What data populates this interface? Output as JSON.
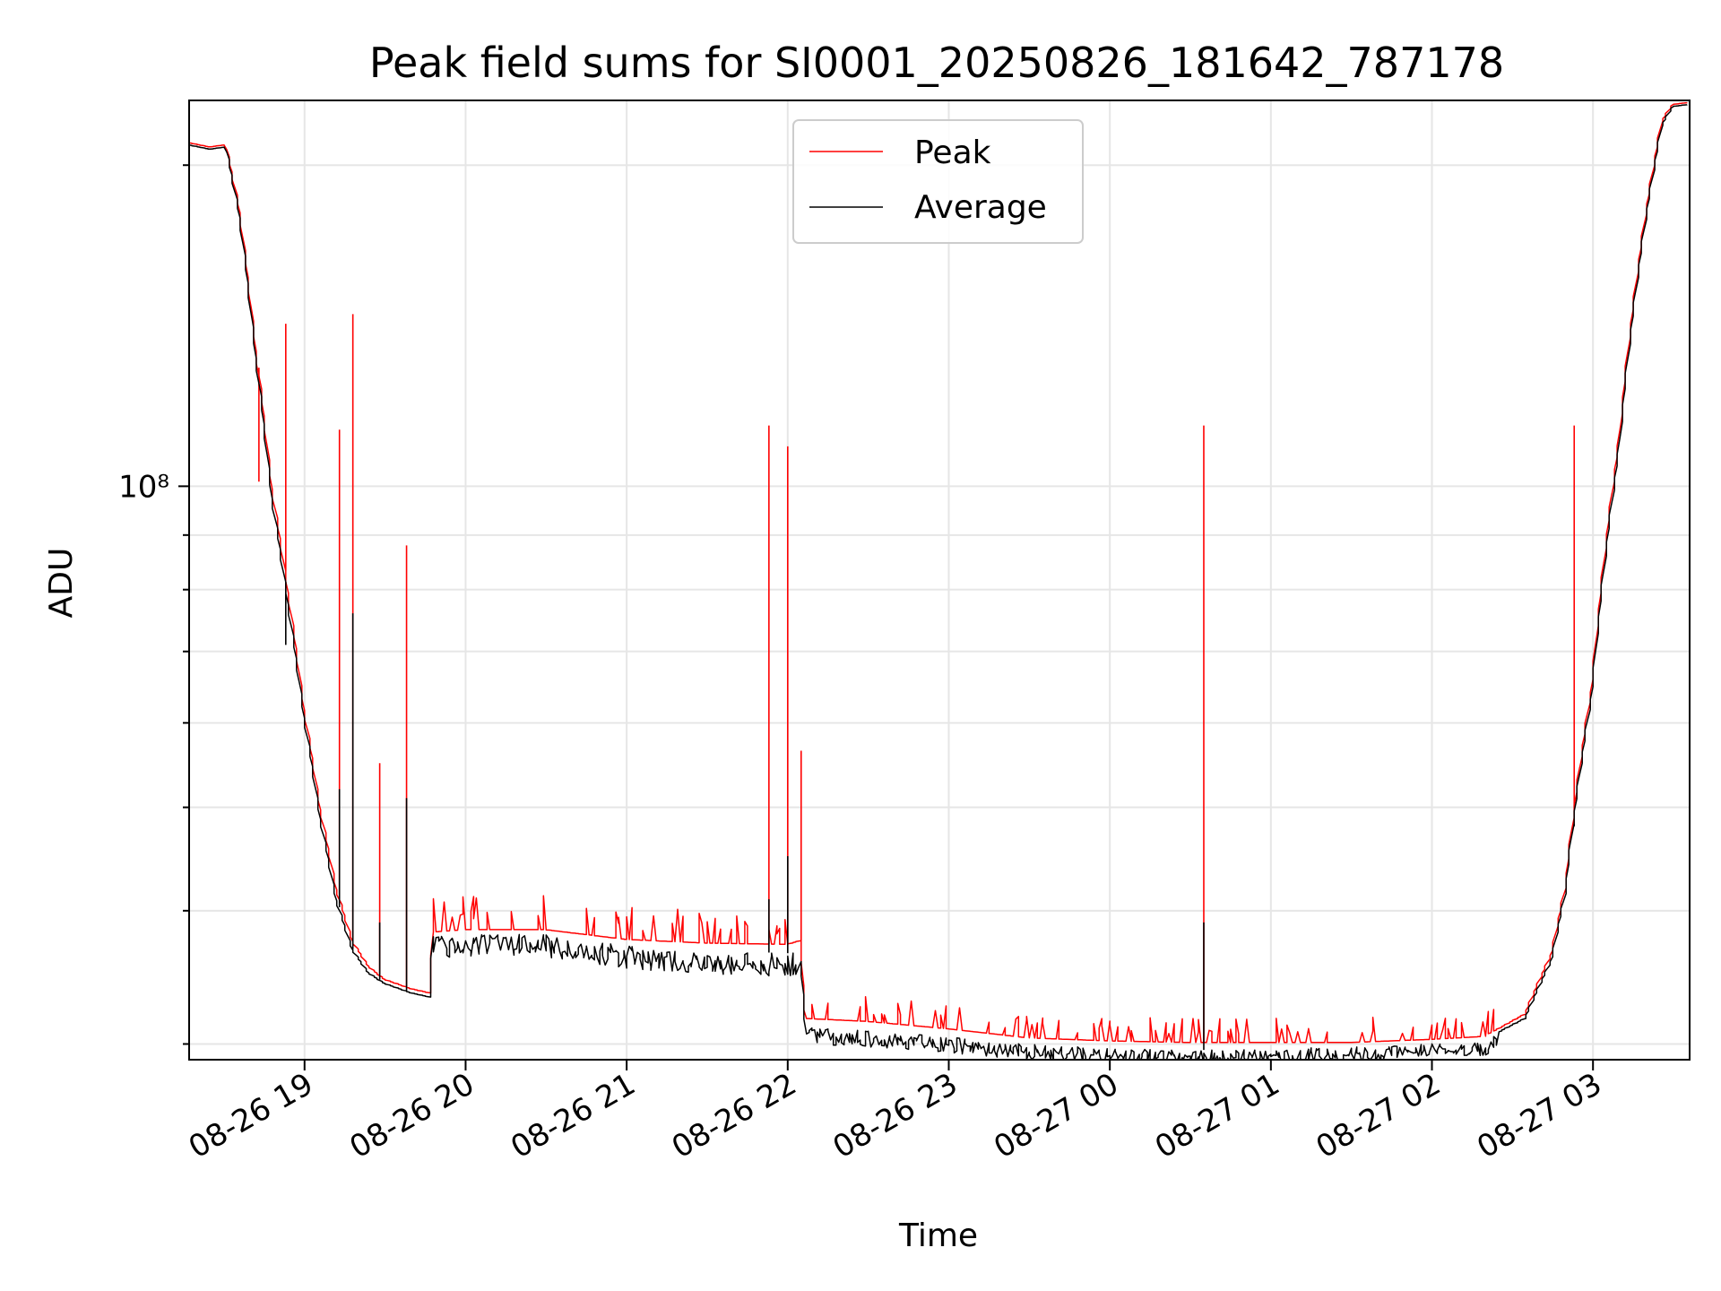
{
  "chart_data": {
    "type": "line",
    "title": "Peak field sums for SI0001_20250826_181642_787178",
    "xlabel": "Time",
    "ylabel": "ADU",
    "yscale": "log",
    "grid": true,
    "legend_position": "top-center",
    "x_ticks": [
      {
        "label": "08-26 19",
        "value": "2025-08-26T19:00"
      },
      {
        "label": "08-26 20",
        "value": "2025-08-26T20:00"
      },
      {
        "label": "08-26 21",
        "value": "2025-08-26T21:00"
      },
      {
        "label": "08-26 22",
        "value": "2025-08-26T22:00"
      },
      {
        "label": "08-26 23",
        "value": "2025-08-26T23:00"
      },
      {
        "label": "08-27 00",
        "value": "2025-08-27T00:00"
      },
      {
        "label": "08-27 01",
        "value": "2025-08-27T01:00"
      },
      {
        "label": "08-27 02",
        "value": "2025-08-27T02:00"
      },
      {
        "label": "08-27 03",
        "value": "2025-08-27T03:00"
      }
    ],
    "y_ticks": [
      {
        "label": "10⁸",
        "value": 100000000
      }
    ],
    "xlim": [
      "2025-08-26T18:17",
      "2025-08-27T03:36"
    ],
    "ylim": [
      29000000,
      230000000
    ],
    "series": [
      {
        "name": "Peak",
        "color": "#ff0000",
        "points": [
          [
            "2025-08-26T18:17",
            210000000
          ],
          [
            "2025-08-26T18:25",
            208000000
          ],
          [
            "2025-08-26T18:31",
            209000000
          ],
          [
            "2025-08-26T18:36",
            182000000
          ],
          [
            "2025-08-26T18:42",
            135000000
          ],
          [
            "2025-08-26T18:48",
            100000000
          ],
          [
            "2025-08-26T18:54",
            80000000
          ],
          [
            "2025-08-26T19:00",
            62000000
          ],
          [
            "2025-08-26T19:06",
            50000000
          ],
          [
            "2025-08-26T19:12",
            42000000
          ],
          [
            "2025-08-26T19:18",
            37500000
          ],
          [
            "2025-08-26T19:24",
            35500000
          ],
          [
            "2025-08-26T19:30",
            34500000
          ],
          [
            "2025-08-26T19:40",
            33800000
          ],
          [
            "2025-08-26T19:47",
            33500000
          ],
          [
            "2025-08-26T19:48",
            38200000
          ],
          [
            "2025-08-26T20:00",
            38400000
          ],
          [
            "2025-08-26T20:30",
            38400000
          ],
          [
            "2025-08-26T21:00",
            37600000
          ],
          [
            "2025-08-26T21:30",
            37300000
          ],
          [
            "2025-08-26T22:00",
            37200000
          ],
          [
            "2025-08-26T22:05",
            37500000
          ],
          [
            "2025-08-26T22:07",
            31700000
          ],
          [
            "2025-08-26T22:30",
            31500000
          ],
          [
            "2025-08-26T23:00",
            31000000
          ],
          [
            "2025-08-26T23:30",
            30400000
          ],
          [
            "2025-08-27T00:00",
            30200000
          ],
          [
            "2025-08-27T00:30",
            30100000
          ],
          [
            "2025-08-27T01:00",
            30100000
          ],
          [
            "2025-08-27T01:30",
            30100000
          ],
          [
            "2025-08-27T02:00",
            30300000
          ],
          [
            "2025-08-27T02:20",
            30500000
          ],
          [
            "2025-08-27T02:35",
            32000000
          ],
          [
            "2025-08-27T02:45",
            36500000
          ],
          [
            "2025-08-27T02:50",
            42000000
          ],
          [
            "2025-08-27T03:00",
            65000000
          ],
          [
            "2025-08-27T03:10",
            110000000
          ],
          [
            "2025-08-27T03:20",
            180000000
          ],
          [
            "2025-08-27T03:26",
            220000000
          ],
          [
            "2025-08-27T03:30",
            228000000
          ],
          [
            "2025-08-27T03:36",
            229000000
          ]
        ],
        "spikes": [
          [
            "2025-08-26T18:43",
            101000000
          ],
          [
            "2025-08-26T18:53",
            142000000
          ],
          [
            "2025-08-26T19:13",
            113000000
          ],
          [
            "2025-08-26T19:18",
            145000000
          ],
          [
            "2025-08-26T19:28",
            55000000
          ],
          [
            "2025-08-26T19:38",
            88000000
          ],
          [
            "2025-08-26T21:53",
            114000000
          ],
          [
            "2025-08-26T22:00",
            109000000
          ],
          [
            "2025-08-26T22:05",
            56500000
          ],
          [
            "2025-08-27T00:35",
            114000000
          ],
          [
            "2025-08-27T02:53",
            114000000
          ]
        ]
      },
      {
        "name": "Average",
        "color": "#000000",
        "points": [
          [
            "2025-08-26T18:17",
            209000000
          ],
          [
            "2025-08-26T18:25",
            207000000
          ],
          [
            "2025-08-26T18:31",
            208000000
          ],
          [
            "2025-08-26T18:36",
            180000000
          ],
          [
            "2025-08-26T18:42",
            133000000
          ],
          [
            "2025-08-26T18:48",
            98000000
          ],
          [
            "2025-08-26T18:54",
            78000000
          ],
          [
            "2025-08-26T19:00",
            61000000
          ],
          [
            "2025-08-26T19:06",
            49000000
          ],
          [
            "2025-08-26T19:12",
            41000000
          ],
          [
            "2025-08-26T19:18",
            36800000
          ],
          [
            "2025-08-26T19:24",
            35000000
          ],
          [
            "2025-08-26T19:30",
            34200000
          ],
          [
            "2025-08-26T19:40",
            33500000
          ],
          [
            "2025-08-26T19:47",
            33200000
          ],
          [
            "2025-08-26T19:48",
            38000000
          ],
          [
            "2025-08-26T20:00",
            38100000
          ],
          [
            "2025-08-26T20:30",
            38000000
          ],
          [
            "2025-08-26T21:00",
            37100000
          ],
          [
            "2025-08-26T21:30",
            36700000
          ],
          [
            "2025-08-26T22:00",
            36500000
          ],
          [
            "2025-08-26T22:05",
            36700000
          ],
          [
            "2025-08-26T22:07",
            31100000
          ],
          [
            "2025-08-26T22:30",
            30900000
          ],
          [
            "2025-08-26T23:00",
            30500000
          ],
          [
            "2025-08-26T23:30",
            30000000
          ],
          [
            "2025-08-27T00:00",
            29700000
          ],
          [
            "2025-08-27T00:30",
            29600000
          ],
          [
            "2025-08-27T01:00",
            29700000
          ],
          [
            "2025-08-27T01:30",
            29800000
          ],
          [
            "2025-08-27T02:00",
            30100000
          ],
          [
            "2025-08-27T02:20",
            30300000
          ],
          [
            "2025-08-27T02:35",
            31700000
          ],
          [
            "2025-08-27T02:45",
            36000000
          ],
          [
            "2025-08-27T02:50",
            41500000
          ],
          [
            "2025-08-27T03:00",
            64000000
          ],
          [
            "2025-08-27T03:10",
            108000000
          ],
          [
            "2025-08-27T03:20",
            178000000
          ],
          [
            "2025-08-27T03:26",
            218000000
          ],
          [
            "2025-08-27T03:30",
            227000000
          ],
          [
            "2025-08-27T03:36",
            228000000
          ]
        ],
        "spikes": [
          [
            "2025-08-26T18:53",
            71000000
          ],
          [
            "2025-08-26T19:13",
            52000000
          ],
          [
            "2025-08-26T19:18",
            76000000
          ],
          [
            "2025-08-26T19:28",
            39000000
          ],
          [
            "2025-08-26T19:38",
            51000000
          ],
          [
            "2025-08-26T21:53",
            41000000
          ],
          [
            "2025-08-26T22:00",
            45000000
          ],
          [
            "2025-08-27T00:35",
            39000000
          ],
          [
            "2025-08-27T02:53",
            48000000
          ]
        ]
      }
    ]
  }
}
